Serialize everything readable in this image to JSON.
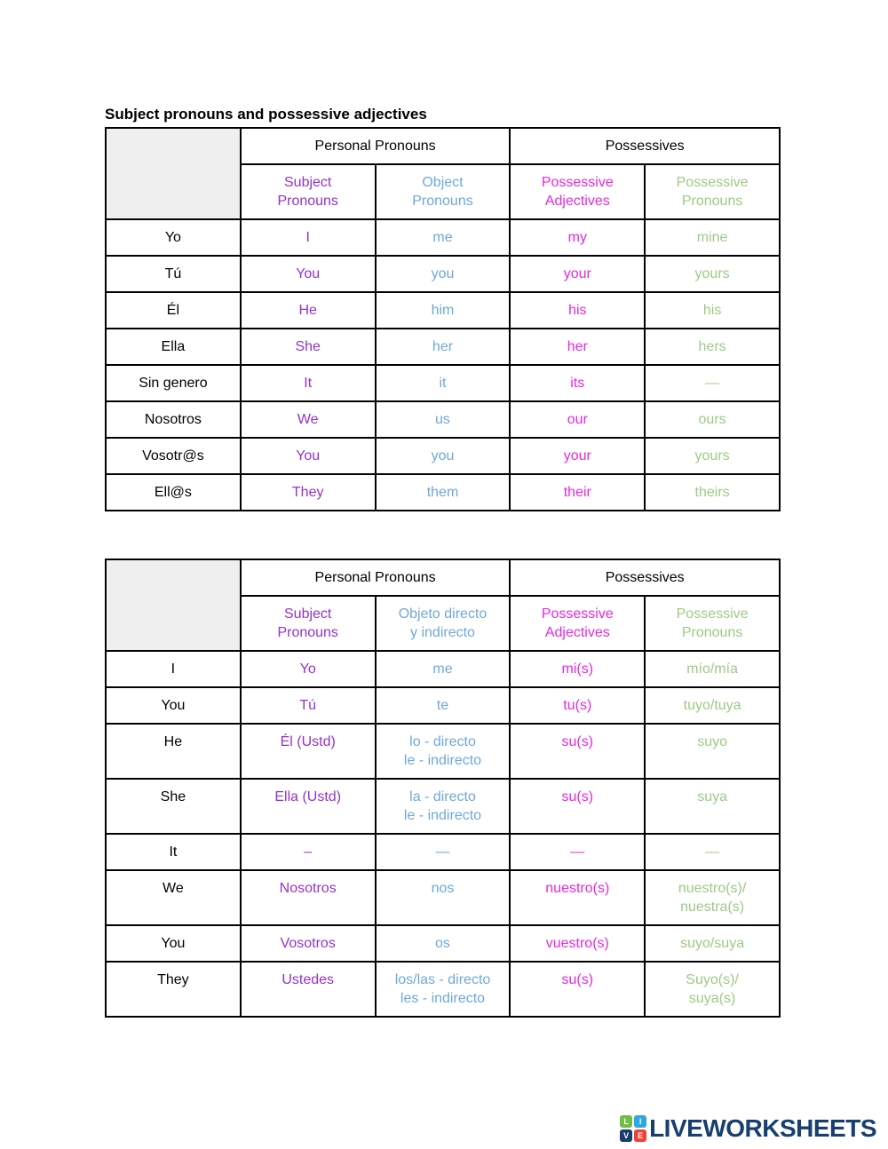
{
  "page": {
    "title": "Subject pronouns and possessive adjectives"
  },
  "colors": {
    "subject": "#9632C8",
    "object": "#6FA8DC",
    "poss_adj": "#E628E1",
    "poss_pron": "#9CCB84",
    "header_text": "#000000",
    "corner_bg": "#EFEFEF",
    "border": "#000000",
    "logo_navy": "#173F6F",
    "tile_green": "#72BF44",
    "tile_blue": "#2FA8E1",
    "tile_navy": "#1B3D6E",
    "tile_red": "#EF4136"
  },
  "tables": [
    {
      "group_headers": [
        {
          "label": "Personal Pronouns",
          "span": 2
        },
        {
          "label": "Possessives",
          "span": 2
        }
      ],
      "col_headers": [
        "Subject\nPronouns",
        "Object\nPronouns",
        "Possessive\nAdjectives",
        "Possessive\nPronouns"
      ],
      "rows": [
        {
          "label": "Yo",
          "cells": [
            "I",
            "me",
            "my",
            "mine"
          ]
        },
        {
          "label": "Tú",
          "cells": [
            "You",
            "you",
            "your",
            "yours"
          ]
        },
        {
          "label": "Él",
          "cells": [
            "He",
            "him",
            "his",
            "his"
          ]
        },
        {
          "label": "Ella",
          "cells": [
            "She",
            "her",
            "her",
            "hers"
          ]
        },
        {
          "label": "Sin genero",
          "cells": [
            "It",
            "it",
            "its",
            "—"
          ]
        },
        {
          "label": "Nosotros",
          "cells": [
            "We",
            "us",
            "our",
            "ours"
          ]
        },
        {
          "label": "Vosotr@s",
          "cells": [
            "You",
            "you",
            "your",
            "yours"
          ]
        },
        {
          "label": "Ell@s",
          "cells": [
            "They",
            "them",
            "their",
            "theirs"
          ]
        }
      ]
    },
    {
      "group_headers": [
        {
          "label": "Personal Pronouns",
          "span": 2
        },
        {
          "label": "Possessives",
          "span": 2
        }
      ],
      "col_headers": [
        "Subject\nPronouns",
        "Objeto directo\ny indirecto",
        "Possessive\nAdjectives",
        "Possessive\nPronouns"
      ],
      "rows": [
        {
          "label": "I",
          "cells": [
            "Yo",
            "me",
            "mi(s)",
            "mío/mía"
          ]
        },
        {
          "label": "You",
          "cells": [
            "Tú",
            "te",
            "tu(s)",
            "tuyo/tuya"
          ]
        },
        {
          "label": "He",
          "cells": [
            "Él (Ustd)",
            "lo - directo\nle - indirecto",
            "su(s)",
            "suyo"
          ]
        },
        {
          "label": "She",
          "cells": [
            "Ella (Ustd)",
            "la - directo\nle - indirecto",
            "su(s)",
            "suya"
          ]
        },
        {
          "label": "It",
          "cells": [
            "–",
            "—",
            "—",
            "—"
          ]
        },
        {
          "label": "We",
          "cells": [
            "Nosotros",
            "nos",
            "nuestro(s)",
            "nuestro(s)/\nnuestra(s)"
          ]
        },
        {
          "label": "You",
          "cells": [
            "Vosotros",
            "os",
            "vuestro(s)",
            "suyo/suya"
          ]
        },
        {
          "label": "They",
          "cells": [
            "Ustedes",
            "los/las - directo\nles - indirecto",
            "su(s)",
            "Suyo(s)/\nsuya(s)"
          ]
        }
      ]
    }
  ],
  "logo": {
    "text": "LIVEWORKSHEETS",
    "tiles": [
      "L",
      "I",
      "V",
      "E"
    ]
  }
}
